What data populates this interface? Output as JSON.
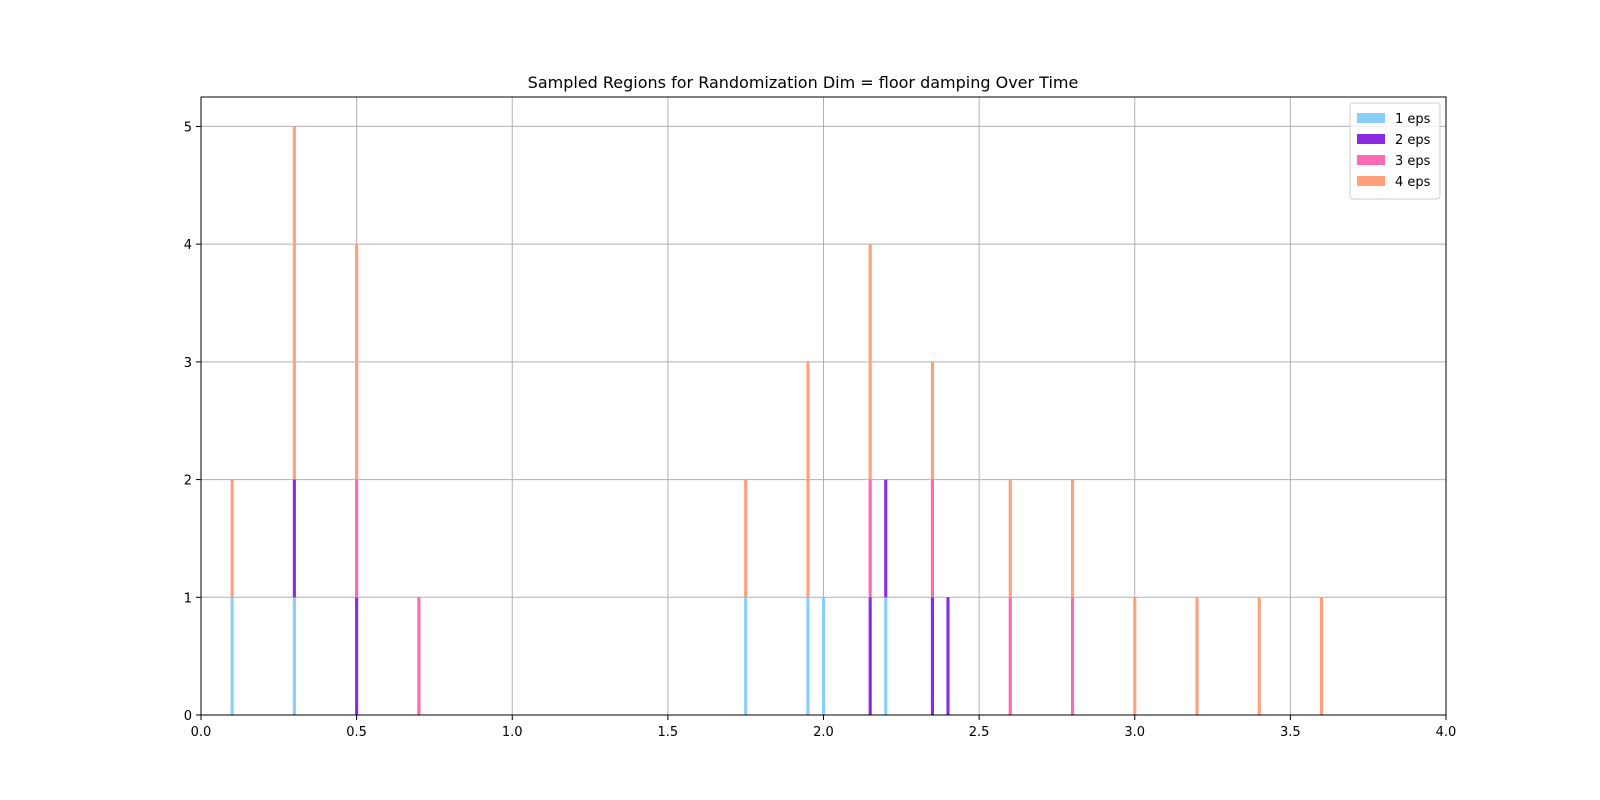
{
  "chart_data": {
    "type": "bar",
    "stacked": true,
    "title": "Sampled Regions for Randomization Dim = floor damping Over Time",
    "xlabel": "",
    "ylabel": "",
    "xlim": [
      0.0,
      4.0
    ],
    "ylim": [
      0,
      5.25
    ],
    "xticks": [
      "0.0",
      "0.5",
      "1.0",
      "1.5",
      "2.0",
      "2.5",
      "3.0",
      "3.5",
      "4.0"
    ],
    "yticks": [
      "0",
      "1",
      "2",
      "3",
      "4",
      "5"
    ],
    "grid": true,
    "legend_position": "top-right",
    "bin_width": 0.01,
    "series": [
      {
        "name": "1 eps",
        "color": "#87CEFA",
        "bins": [
          {
            "x": 0.1,
            "value": 1
          },
          {
            "x": 0.3,
            "value": 1
          },
          {
            "x": 1.75,
            "value": 1
          },
          {
            "x": 1.95,
            "value": 1
          },
          {
            "x": 2.0,
            "value": 1
          },
          {
            "x": 2.2,
            "value": 1
          }
        ]
      },
      {
        "name": "2 eps",
        "color": "#8A2BE2",
        "bins": [
          {
            "x": 0.3,
            "value": 1
          },
          {
            "x": 0.5,
            "value": 1
          },
          {
            "x": 2.15,
            "value": 1
          },
          {
            "x": 2.2,
            "value": 1
          },
          {
            "x": 2.35,
            "value": 1
          },
          {
            "x": 2.4,
            "value": 1
          }
        ]
      },
      {
        "name": "3 eps",
        "color": "#FF69B4",
        "bins": [
          {
            "x": 0.5,
            "value": 1
          },
          {
            "x": 0.7,
            "value": 1
          },
          {
            "x": 2.15,
            "value": 1
          },
          {
            "x": 2.35,
            "value": 1
          },
          {
            "x": 2.6,
            "value": 1
          },
          {
            "x": 2.8,
            "value": 1
          }
        ]
      },
      {
        "name": "4 eps",
        "color": "#FFA07A",
        "bins": [
          {
            "x": 0.1,
            "value": 1
          },
          {
            "x": 0.3,
            "value": 3
          },
          {
            "x": 0.5,
            "value": 2
          },
          {
            "x": 1.75,
            "value": 1
          },
          {
            "x": 1.95,
            "value": 2
          },
          {
            "x": 2.15,
            "value": 2
          },
          {
            "x": 2.35,
            "value": 1
          },
          {
            "x": 2.6,
            "value": 1
          },
          {
            "x": 2.8,
            "value": 1
          },
          {
            "x": 3.0,
            "value": 1
          },
          {
            "x": 3.2,
            "value": 1
          },
          {
            "x": 3.4,
            "value": 1
          },
          {
            "x": 3.6,
            "value": 1
          }
        ]
      }
    ]
  }
}
